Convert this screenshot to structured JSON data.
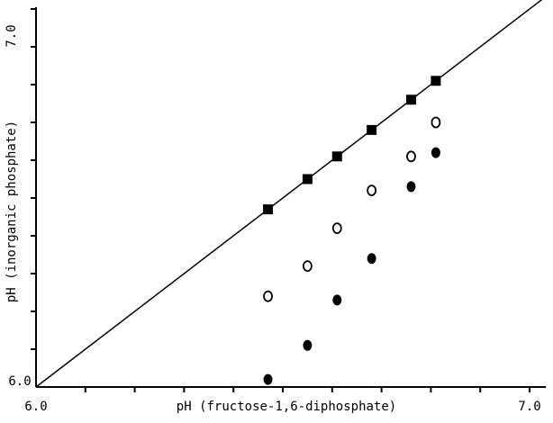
{
  "chart_data": {
    "type": "scatter",
    "title": "",
    "xlabel": "pH (fructose-1,6-diphosphate)",
    "ylabel": "pH (inorganic phosphate)",
    "xlim": [
      6.0,
      7.0
    ],
    "ylim": [
      6.0,
      7.0
    ],
    "x_tick_labels": [
      "6.0",
      "7.0"
    ],
    "y_tick_labels": [
      "6.0",
      "7.0"
    ],
    "grid": false,
    "reference_line": {
      "from": [
        6.0,
        6.0
      ],
      "to": [
        7.0,
        7.0
      ]
    },
    "series": [
      {
        "marker": "filled-square",
        "points": [
          [
            6.47,
            6.47
          ],
          [
            6.55,
            6.55
          ],
          [
            6.61,
            6.61
          ],
          [
            6.68,
            6.68
          ],
          [
            6.76,
            6.76
          ],
          [
            6.81,
            6.81
          ]
        ]
      },
      {
        "marker": "open-circle",
        "points": [
          [
            6.47,
            6.24
          ],
          [
            6.55,
            6.32
          ],
          [
            6.61,
            6.42
          ],
          [
            6.68,
            6.52
          ],
          [
            6.76,
            6.61
          ],
          [
            6.81,
            6.7
          ]
        ]
      },
      {
        "marker": "filled-circle",
        "points": [
          [
            6.47,
            6.02
          ],
          [
            6.55,
            6.11
          ],
          [
            6.61,
            6.23
          ],
          [
            6.68,
            6.34
          ],
          [
            6.76,
            6.53
          ],
          [
            6.81,
            6.62
          ]
        ]
      }
    ]
  },
  "colors": {
    "ink": "#000000",
    "background": "#ffffff"
  }
}
